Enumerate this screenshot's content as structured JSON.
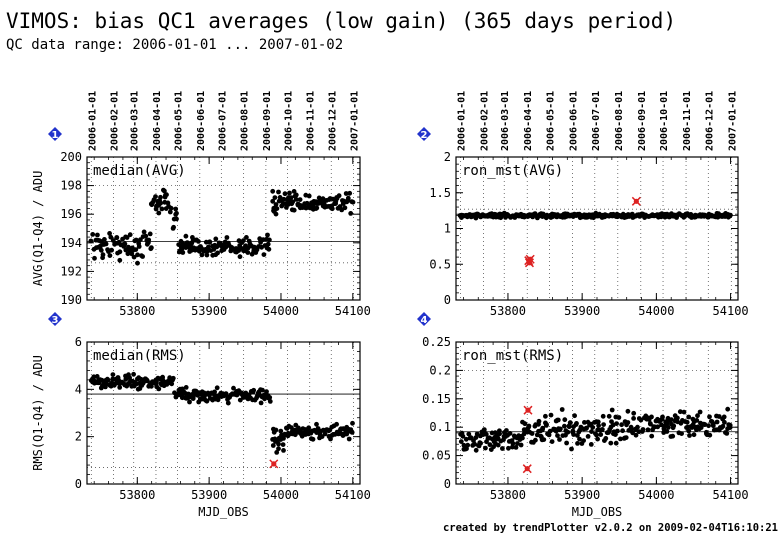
{
  "title": "VIMOS: bias QC1 averages (low gain) (365 days period)",
  "subtitle": "QC data range: 2006-01-01 ... 2007-01-02",
  "footer": "created by trendPlotter v2.0.2 on 2009-02-04T16:10:21",
  "date_ticks": [
    "2006-01-01",
    "2006-02-01",
    "2006-03-01",
    "2006-04-01",
    "2006-05-01",
    "2006-06-01",
    "2006-07-01",
    "2006-08-01",
    "2006-09-01",
    "2006-10-01",
    "2006-11-01",
    "2006-12-01",
    "2007-01-01"
  ],
  "colors": {
    "points": "#000000",
    "outlier": "#dd2222",
    "badge": "#2233cc",
    "grid": "#555555"
  },
  "chart_data": [
    {
      "type": "scatter",
      "badge": "1",
      "panel_label": "median(AVG)",
      "xlabel": "",
      "ylabel": "AVG(Q1-Q4) / ADU",
      "xlim": [
        53730,
        54110
      ],
      "ylim": [
        190,
        200
      ],
      "xticks": [
        53800,
        53900,
        54000,
        54100
      ],
      "yticks": [
        190,
        192,
        194,
        196,
        198,
        200
      ],
      "ref_line": 194.1,
      "dotted_lines": [
        192.6,
        198.0
      ],
      "segments": [
        {
          "x0": 53736,
          "x1": 53820,
          "center": 193.8,
          "spread": 1.1
        },
        {
          "x0": 53820,
          "x1": 53848,
          "center": 196.9,
          "spread": 0.9
        },
        {
          "x0": 53850,
          "x1": 53856,
          "center": 195.8,
          "spread": 0.8
        },
        {
          "x0": 53858,
          "x1": 53985,
          "center": 193.7,
          "spread": 0.7
        },
        {
          "x0": 53988,
          "x1": 54100,
          "center": 196.8,
          "spread": 0.7
        }
      ],
      "outliers": []
    },
    {
      "type": "scatter",
      "badge": "2",
      "panel_label": "ron_mst(AVG)",
      "xlabel": "",
      "ylabel": "",
      "xlim": [
        53730,
        54110
      ],
      "ylim": [
        0,
        2
      ],
      "xticks": [
        53800,
        53900,
        54000,
        54100
      ],
      "yticks": [
        0,
        0.5,
        1,
        1.5,
        2
      ],
      "ref_line": 1.18,
      "dotted_lines": [
        1.27
      ],
      "segments": [
        {
          "x0": 53736,
          "x1": 54100,
          "center": 1.18,
          "spread": 0.03
        }
      ],
      "outliers": [
        {
          "x": 53828,
          "y": 0.55
        },
        {
          "x": 53829,
          "y": 0.52
        },
        {
          "x": 53830,
          "y": 0.57
        },
        {
          "x": 53973,
          "y": 1.38
        }
      ]
    },
    {
      "type": "scatter",
      "badge": "3",
      "panel_label": "median(RMS)",
      "xlabel": "MJD_OBS",
      "ylabel": "RMS(Q1-Q4) / ADU",
      "xlim": [
        53730,
        54110
      ],
      "ylim": [
        0,
        6
      ],
      "xticks": [
        53800,
        53900,
        54000,
        54100
      ],
      "yticks": [
        0,
        2,
        4,
        6
      ],
      "ref_line": 3.8,
      "dotted_lines": [
        0.7
      ],
      "segments": [
        {
          "x0": 53736,
          "x1": 53850,
          "center": 4.3,
          "spread": 0.3
        },
        {
          "x0": 53852,
          "x1": 53985,
          "center": 3.75,
          "spread": 0.3
        },
        {
          "x0": 53988,
          "x1": 54005,
          "center": 1.8,
          "spread": 0.5
        },
        {
          "x0": 54005,
          "x1": 54100,
          "center": 2.2,
          "spread": 0.3
        }
      ],
      "outliers": [
        {
          "x": 53990,
          "y": 0.85
        }
      ]
    },
    {
      "type": "scatter",
      "badge": "4",
      "panel_label": "ron_mst(RMS)",
      "xlabel": "MJD_OBS",
      "ylabel": "",
      "xlim": [
        53730,
        54110
      ],
      "ylim": [
        0,
        0.25
      ],
      "xticks": [
        53800,
        53900,
        54000,
        54100
      ],
      "yticks": [
        0,
        0.05,
        0.1,
        0.15,
        0.2,
        0.25
      ],
      "ref_line": 0.092,
      "dotted_lines": [
        0.2
      ],
      "segments": [
        {
          "x0": 53736,
          "x1": 53820,
          "center": 0.078,
          "spread": 0.022
        },
        {
          "x0": 53820,
          "x1": 53960,
          "center": 0.095,
          "spread": 0.028
        },
        {
          "x0": 53960,
          "x1": 54100,
          "center": 0.105,
          "spread": 0.022
        }
      ],
      "outliers": [
        {
          "x": 53826,
          "y": 0.027
        },
        {
          "x": 53827,
          "y": 0.13
        }
      ]
    }
  ]
}
